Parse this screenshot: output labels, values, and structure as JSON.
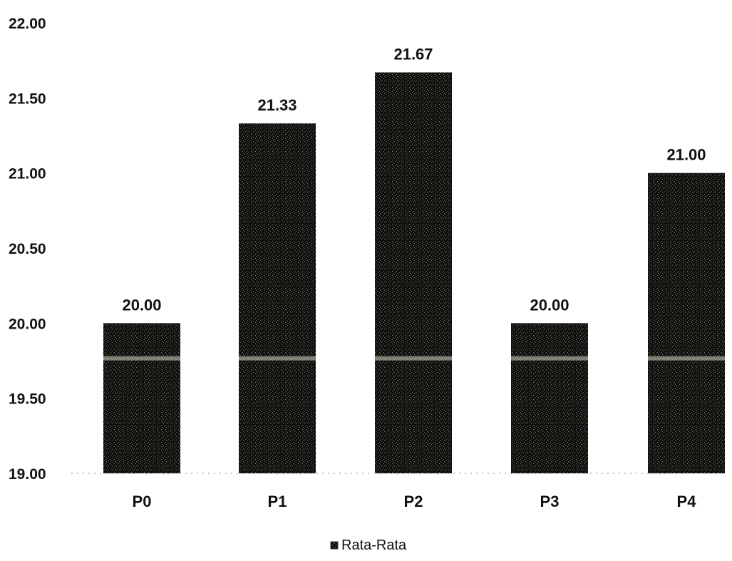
{
  "chart_data": {
    "type": "bar",
    "categories": [
      "P0",
      "P1",
      "P2",
      "P3",
      "P4"
    ],
    "series": [
      {
        "name": "Rata-Rata",
        "values": [
          20.0,
          21.33,
          21.67,
          20.0,
          21.0
        ],
        "labels": [
          "20.00",
          "21.33",
          "21.67",
          "20.00",
          "21.00"
        ]
      }
    ],
    "ylim": [
      19.0,
      22.0
    ],
    "yticks": [
      "19.00",
      "19.50",
      "20.00",
      "20.50",
      "21.00",
      "21.50",
      "22.00"
    ],
    "grid": false,
    "legend_position": "bottom-center",
    "colors": {
      "bar": "#111111",
      "text": "#111111"
    }
  }
}
